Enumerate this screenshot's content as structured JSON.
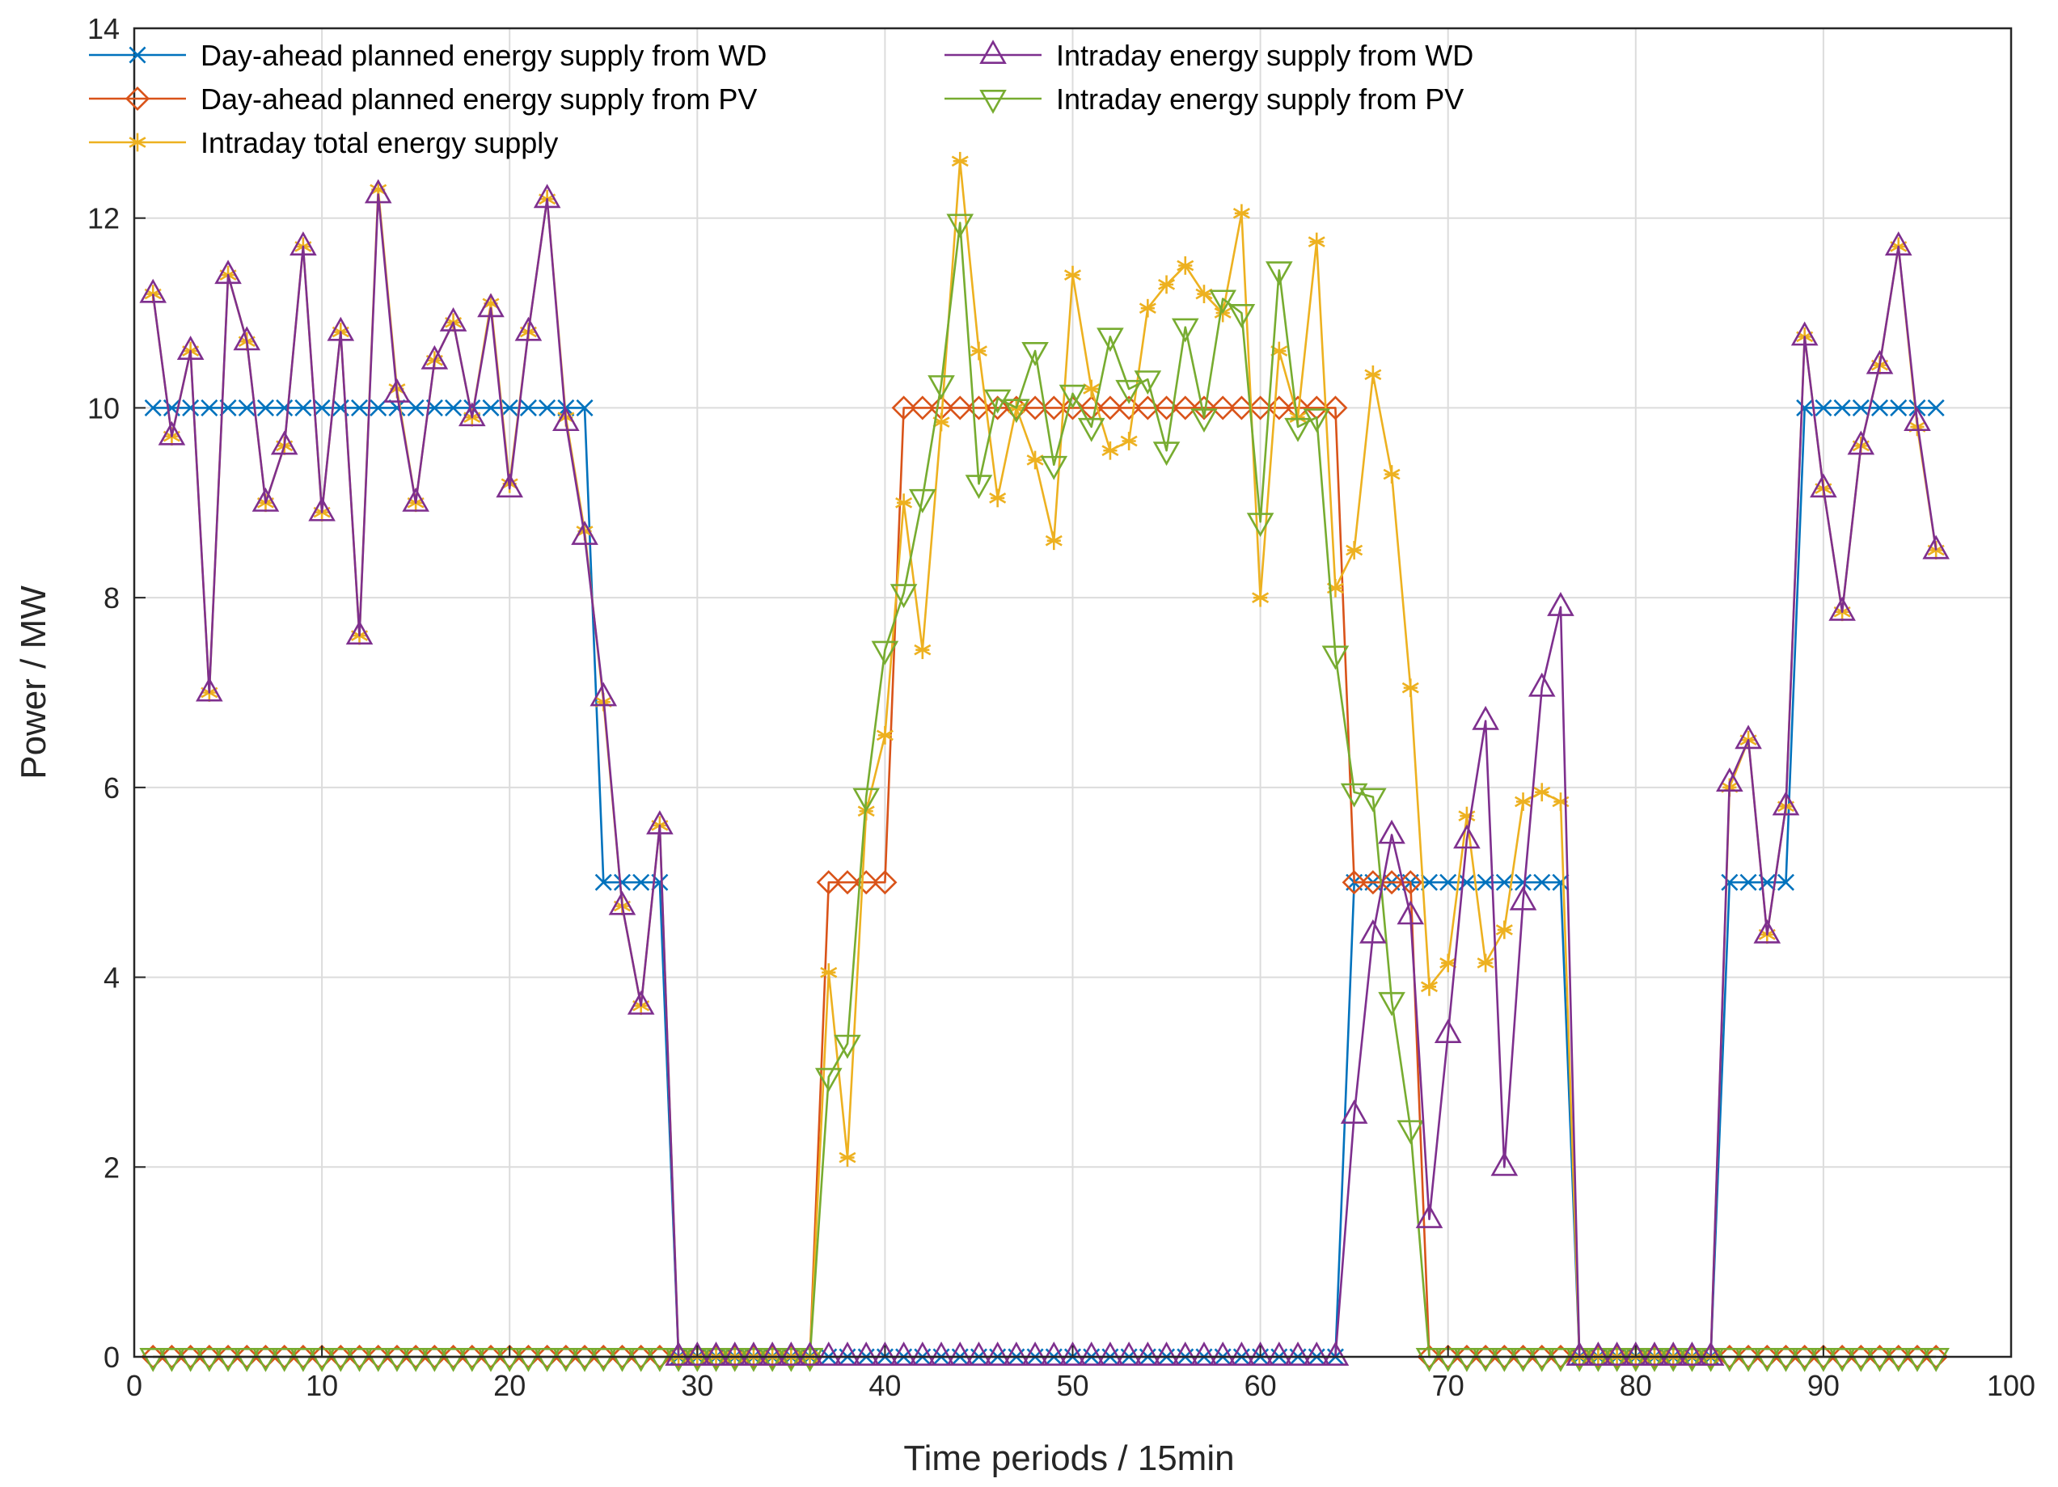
{
  "chart_data": {
    "type": "line",
    "xlabel": "Time periods / 15min",
    "ylabel": "Power / MW",
    "xlim": [
      0,
      100
    ],
    "ylim": [
      0,
      14
    ],
    "xticks": [
      "0",
      "10",
      "20",
      "30",
      "40",
      "50",
      "60",
      "70",
      "80",
      "90",
      "100"
    ],
    "yticks": [
      "0",
      "2",
      "4",
      "6",
      "8",
      "10",
      "12",
      "14"
    ],
    "grid": true,
    "legend_position": "top-left",
    "series": [
      {
        "name": "Day-ahead planned energy supply from WD",
        "color": "#0072BD",
        "marker": "x",
        "values": [
          10,
          10,
          10,
          10,
          10,
          10,
          10,
          10,
          10,
          10,
          10,
          10,
          10,
          10,
          10,
          10,
          10,
          10,
          10,
          10,
          10,
          10,
          10,
          10,
          5,
          5,
          5,
          5,
          0,
          0,
          0,
          0,
          0,
          0,
          0,
          0,
          0,
          0,
          0,
          0,
          0,
          0,
          0,
          0,
          0,
          0,
          0,
          0,
          0,
          0,
          0,
          0,
          0,
          0,
          0,
          0,
          0,
          0,
          0,
          0,
          0,
          0,
          0,
          0,
          5,
          5,
          5,
          5,
          5,
          5,
          5,
          5,
          5,
          5,
          5,
          5,
          0,
          0,
          0,
          0,
          0,
          0,
          0,
          0,
          5,
          5,
          5,
          5,
          10,
          10,
          10,
          10,
          10,
          10,
          10,
          10
        ]
      },
      {
        "name": "Day-ahead planned energy supply from PV",
        "color": "#D95319",
        "marker": "diamond",
        "values": [
          0,
          0,
          0,
          0,
          0,
          0,
          0,
          0,
          0,
          0,
          0,
          0,
          0,
          0,
          0,
          0,
          0,
          0,
          0,
          0,
          0,
          0,
          0,
          0,
          0,
          0,
          0,
          0,
          0,
          0,
          0,
          0,
          0,
          0,
          0,
          0,
          5,
          5,
          5,
          5,
          10,
          10,
          10,
          10,
          10,
          10,
          10,
          10,
          10,
          10,
          10,
          10,
          10,
          10,
          10,
          10,
          10,
          10,
          10,
          10,
          10,
          10,
          10,
          10,
          5,
          5,
          5,
          5,
          0,
          0,
          0,
          0,
          0,
          0,
          0,
          0,
          0,
          0,
          0,
          0,
          0,
          0,
          0,
          0,
          0,
          0,
          0,
          0,
          0,
          0,
          0,
          0,
          0,
          0,
          0,
          0
        ]
      },
      {
        "name": "Intraday total energy supply",
        "color": "#EDB120",
        "marker": "asterisk",
        "values": [
          11.2,
          9.7,
          10.6,
          7.0,
          11.4,
          10.7,
          9.0,
          9.6,
          11.7,
          8.9,
          10.8,
          7.6,
          12.3,
          10.2,
          9.0,
          10.5,
          10.9,
          9.9,
          11.1,
          9.2,
          10.8,
          12.2,
          9.9,
          8.7,
          6.9,
          4.75,
          3.7,
          5.6,
          0,
          0,
          0,
          0,
          0,
          0,
          0,
          0,
          4.05,
          2.1,
          5.75,
          6.55,
          9.0,
          7.45,
          9.85,
          12.6,
          10.6,
          9.05,
          10.0,
          9.45,
          8.6,
          11.4,
          10.2,
          9.55,
          9.65,
          11.05,
          11.3,
          11.5,
          11.2,
          11.0,
          12.05,
          8.0,
          10.6,
          9.9,
          11.75,
          8.1,
          8.5,
          10.35,
          9.3,
          7.05,
          3.9,
          4.15,
          5.7,
          4.15,
          4.5,
          5.85,
          5.95,
          5.85,
          0,
          0,
          0,
          0,
          0,
          0,
          0,
          0,
          6.0,
          6.5,
          4.45,
          5.8,
          10.75,
          9.15,
          7.85,
          9.6,
          10.45,
          11.7,
          9.8,
          8.5
        ]
      },
      {
        "name": "Intraday energy supply from WD",
        "color": "#7E2F8E",
        "marker": "triangle-up",
        "values": [
          11.2,
          9.7,
          10.6,
          7.0,
          11.4,
          10.7,
          9.0,
          9.6,
          11.7,
          8.9,
          10.8,
          7.6,
          12.25,
          10.15,
          9.0,
          10.5,
          10.9,
          9.9,
          11.05,
          9.15,
          10.8,
          12.2,
          9.85,
          8.65,
          6.95,
          4.75,
          3.7,
          5.6,
          0,
          0,
          0,
          0,
          0,
          0,
          0,
          0,
          0,
          0,
          0,
          0,
          0,
          0,
          0,
          0,
          0,
          0,
          0,
          0,
          0,
          0,
          0,
          0,
          0,
          0,
          0,
          0,
          0,
          0,
          0,
          0,
          0,
          0,
          0,
          0,
          2.55,
          4.45,
          5.5,
          4.65,
          1.45,
          3.4,
          5.45,
          6.7,
          2.0,
          4.8,
          7.05,
          7.9,
          0,
          0,
          0,
          0,
          0,
          0,
          0,
          0,
          6.05,
          6.5,
          4.45,
          5.8,
          10.75,
          9.15,
          7.85,
          9.6,
          10.45,
          11.7,
          9.85,
          8.5
        ]
      },
      {
        "name": "Intraday energy supply from PV",
        "color": "#77AC30",
        "marker": "triangle-down",
        "values": [
          0,
          0,
          0,
          0,
          0,
          0,
          0,
          0,
          0,
          0,
          0,
          0,
          0,
          0,
          0,
          0,
          0,
          0,
          0,
          0,
          0,
          0,
          0,
          0,
          0,
          0,
          0,
          0,
          0,
          0,
          0,
          0,
          0,
          0,
          0,
          0,
          2.95,
          3.3,
          5.9,
          7.45,
          8.05,
          9.05,
          10.25,
          11.95,
          9.2,
          10.1,
          10.0,
          10.6,
          9.4,
          10.15,
          9.8,
          10.75,
          10.2,
          10.3,
          9.55,
          10.85,
          9.9,
          11.15,
          11.0,
          8.8,
          11.45,
          9.8,
          9.9,
          7.4,
          5.95,
          5.9,
          3.75,
          2.4,
          0,
          0,
          0,
          0,
          0,
          0,
          0,
          0,
          0,
          0,
          0,
          0,
          0,
          0,
          0,
          0,
          0,
          0,
          0,
          0,
          0,
          0,
          0,
          0,
          0,
          0,
          0,
          0
        ]
      }
    ]
  }
}
